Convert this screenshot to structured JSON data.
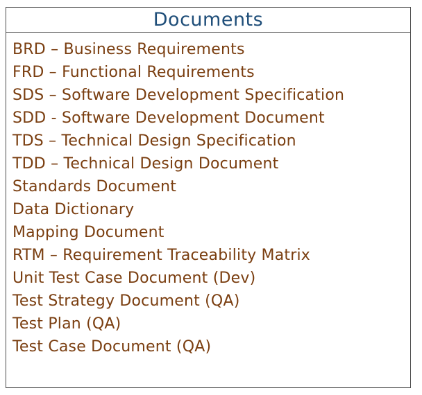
{
  "documents_table": {
    "title": "Documents",
    "items": [
      "BRD – Business Requirements",
      "FRD – Functional Requirements",
      "SDS – Software Development Specification",
      "SDD - Software Development Document",
      "TDS – Technical Design Specification",
      "TDD – Technical Design Document",
      "Standards Document",
      "Data Dictionary",
      "Mapping Document",
      "RTM – Requirement Traceability Matrix",
      "Unit Test Case Document (Dev)",
      "Test Strategy Document (QA)",
      "Test Plan (QA)",
      "Test Case Document (QA)"
    ]
  },
  "colors": {
    "title": "#1f4e79",
    "item_text": "#7a3e10",
    "border": "#4a4a4a"
  }
}
